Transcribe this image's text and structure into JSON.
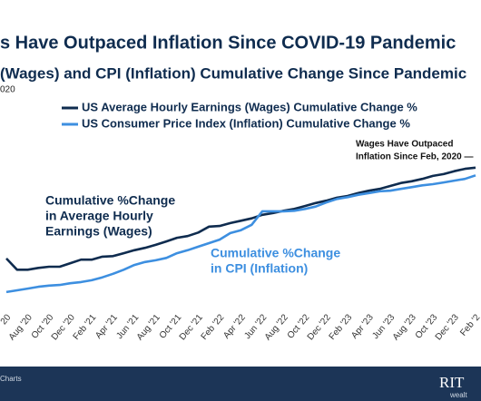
{
  "chart_data": {
    "type": "line",
    "title": "s Have Outpaced Inflation Since COVID-19 Pandemic",
    "subtitle": "(Wages) and CPI (Inflation) Cumulative Change Since Pandemic",
    "subtitle_2": "020",
    "categories": [
      "20",
      null,
      "Aug '20",
      null,
      "Oct '20",
      null,
      "Dec '20",
      null,
      "Feb '21",
      null,
      "Apr '21",
      null,
      "Jun '21",
      null,
      "Aug '21",
      null,
      "Oct '21",
      null,
      "Dec '21",
      null,
      "Feb '22",
      null,
      "Apr '22",
      null,
      "Jun '22",
      null,
      "Aug '22",
      null,
      "Oct '22",
      null,
      "Dec '22",
      null,
      "Feb '23",
      null,
      "Apr '23",
      null,
      "Jun '23",
      null,
      "Aug '23",
      null,
      "Oct '23",
      null,
      "Dec '23",
      null,
      "Feb '2"
    ],
    "series": [
      {
        "name": "US Average Hourly Earnings (Wages) Cumulative Change %",
        "color": "#0f2c4f",
        "values": [
          5.4,
          3.5,
          3.5,
          3.8,
          4.0,
          4.0,
          4.6,
          5.2,
          5.2,
          5.7,
          5.8,
          6.3,
          6.8,
          7.2,
          7.7,
          8.3,
          8.9,
          9.2,
          9.8,
          10.8,
          10.9,
          11.4,
          11.8,
          12.2,
          12.8,
          13.1,
          13.5,
          13.8,
          14.3,
          14.8,
          15.2,
          15.7,
          16.0,
          16.5,
          16.9,
          17.2,
          17.7,
          18.2,
          18.5,
          18.9,
          19.4,
          19.7,
          20.2,
          20.6,
          20.8
        ]
      },
      {
        "name": "US Consumer Price Index (Inflation) Cumulative Change %",
        "color": "#3d8fe0",
        "values": [
          -0.3,
          0,
          0.3,
          0.6,
          0.8,
          0.9,
          1.2,
          1.4,
          1.7,
          2.2,
          2.8,
          3.5,
          4.3,
          4.8,
          5.1,
          5.5,
          6.3,
          6.8,
          7.4,
          8.0,
          8.6,
          9.7,
          10.2,
          11.1,
          13.4,
          13.4,
          13.4,
          13.5,
          13.8,
          14.2,
          14.9,
          15.5,
          15.8,
          16.2,
          16.5,
          16.8,
          16.9,
          17.2,
          17.5,
          17.8,
          18.0,
          18.3,
          18.6,
          18.9,
          19.5
        ]
      }
    ],
    "ylim": [
      -2,
      26
    ],
    "annotations": [
      {
        "lines": [
          "Cumulative %Change",
          "in Average Hourly",
          "Earnings (Wages)"
        ],
        "color": "#0f2c4f"
      },
      {
        "lines": [
          "Cumulative %Change",
          "in CPI (Inflation)"
        ],
        "color": "#3d8fe0"
      },
      {
        "lines": [
          "Wages Have Outpaced",
          "Inflation Since Feb, 2020 —"
        ],
        "color": "#111111"
      }
    ],
    "footer": {
      "source": "Charts",
      "logo": "RIT",
      "logo_sub": "wealt"
    }
  }
}
